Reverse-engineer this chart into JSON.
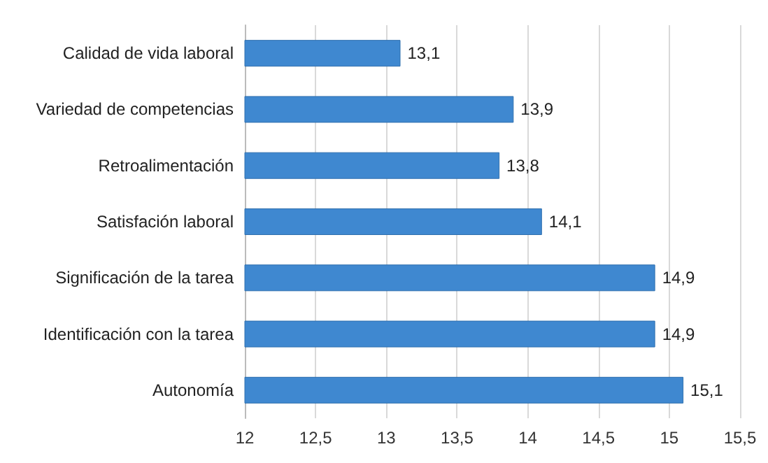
{
  "chart_data": {
    "type": "bar",
    "orientation": "horizontal",
    "categories": [
      "Calidad de vida laboral",
      "Variedad de competencias",
      "Retroalimentación",
      "Satisfación laboral",
      "Significación de la tarea",
      "Identificación con la tarea",
      "Autonomía"
    ],
    "values": [
      13.1,
      13.9,
      13.8,
      14.1,
      14.9,
      14.9,
      15.1
    ],
    "value_labels": [
      "13,1",
      "13,9",
      "13,8",
      "14,1",
      "14,9",
      "14,9",
      "15,1"
    ],
    "color": "#3f88d0",
    "xlim": [
      12,
      15.5
    ],
    "xticks": [
      12,
      {
        "value": 12.5,
        "label": "12,5"
      },
      13,
      {
        "value": 13.5,
        "label": "13,5"
      },
      14,
      {
        "value": 14.5,
        "label": "14,5"
      },
      15,
      {
        "value": 15.5,
        "label": "15,5"
      }
    ],
    "grid": "x"
  }
}
